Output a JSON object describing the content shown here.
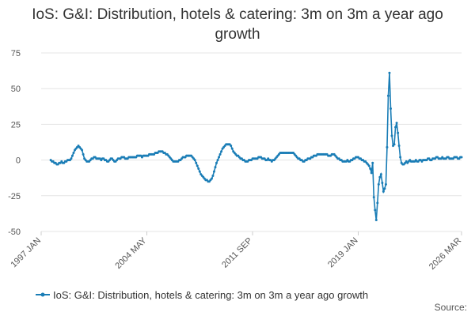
{
  "chart_data": {
    "type": "line",
    "title": "IoS: G&I: Distribution, hotels & catering: 3m on 3m a year ago growth",
    "source": "Source:",
    "x": [
      "1997 JAN",
      null,
      null,
      null,
      null,
      null,
      null,
      null,
      null,
      null,
      null,
      null,
      null,
      null,
      null,
      null,
      null,
      null,
      null,
      null,
      null,
      null,
      null,
      null,
      null,
      null,
      null,
      null,
      null,
      null,
      null,
      null,
      null,
      null,
      null,
      null,
      null,
      null,
      null,
      null,
      null,
      null,
      null,
      null,
      null,
      null,
      null,
      null,
      null,
      null,
      null,
      null,
      null,
      null,
      null,
      null,
      null,
      null,
      null,
      null,
      null,
      null,
      null,
      null,
      null,
      null,
      null,
      null,
      null,
      null,
      null,
      null,
      null,
      null,
      null,
      null,
      null,
      null,
      null,
      null,
      null,
      null,
      null,
      null,
      null,
      null,
      null,
      null,
      "2004 MAY",
      null,
      null,
      null,
      null,
      null,
      null,
      null,
      null,
      null,
      null,
      null,
      null,
      null,
      null,
      null,
      null,
      null,
      null,
      null,
      null,
      null,
      null,
      null,
      null,
      null,
      null,
      null,
      null,
      null,
      null,
      null,
      null,
      null,
      null,
      null,
      null,
      null,
      null,
      null,
      null,
      null,
      null,
      null,
      null,
      null,
      null,
      null,
      null,
      null,
      null,
      null,
      null,
      null,
      null,
      null,
      null,
      null,
      null,
      null,
      null,
      null,
      null,
      null,
      null,
      null,
      null,
      null,
      null,
      null,
      null,
      null,
      null,
      null,
      null,
      null,
      null,
      null,
      null,
      null,
      null,
      null,
      null,
      null,
      null,
      null,
      null,
      null,
      "2011 SEP",
      null,
      null,
      null,
      null,
      null,
      null,
      null,
      null,
      null,
      null,
      null,
      null,
      null,
      null,
      null,
      null,
      null,
      null,
      null,
      null,
      null,
      null,
      null,
      null,
      null,
      null,
      null,
      null,
      null,
      null,
      null,
      null,
      null,
      null,
      null,
      null,
      null,
      null,
      null,
      null,
      null,
      null,
      null,
      null,
      null,
      null,
      null,
      null,
      null,
      null,
      null,
      null,
      null,
      null,
      null,
      null,
      null,
      null,
      null,
      null,
      null,
      null,
      null,
      null,
      null,
      null,
      null,
      null,
      null,
      null,
      null,
      null,
      null,
      null,
      null,
      null,
      null,
      null,
      null,
      null,
      null,
      null,
      null,
      null,
      null,
      null,
      null,
      "2019 JAN",
      null,
      null,
      null,
      null,
      null,
      null,
      null,
      null,
      null,
      null,
      null,
      null,
      null,
      null,
      null,
      null,
      null,
      null,
      null,
      null,
      null,
      null,
      null,
      null,
      null,
      null,
      null,
      null,
      null,
      null,
      null,
      null,
      null,
      null,
      null,
      null,
      null,
      null,
      null,
      null,
      null,
      null,
      null,
      null,
      null,
      null,
      null,
      null,
      null,
      null,
      null,
      null,
      null,
      null,
      null,
      null,
      null,
      null,
      null,
      null,
      null,
      null,
      null,
      null,
      null,
      null,
      null,
      null,
      null,
      null,
      null,
      null,
      null,
      null,
      null,
      null,
      null,
      null,
      null,
      null,
      null,
      null,
      null,
      null,
      null,
      "2026 MAR"
    ],
    "series": [
      {
        "name": "IoS: G&I: Distribution, hotels & catering: 3m on 3m a year ago growth",
        "color": "#1a7db6",
        "values": [
          null,
          null,
          null,
          null,
          null,
          null,
          null,
          null,
          0,
          -1,
          -1,
          -2,
          -2,
          -3,
          -3,
          -2,
          -2,
          -1,
          -2,
          -2,
          -1,
          -1,
          0,
          0,
          0,
          1,
          3,
          5,
          7,
          8,
          9,
          10,
          9,
          8,
          7,
          4,
          1,
          0,
          -1,
          -1,
          -1,
          0,
          1,
          1,
          2,
          2,
          1,
          1,
          1,
          1,
          0,
          1,
          1,
          0,
          0,
          -1,
          -1,
          0,
          1,
          1,
          0,
          -1,
          -1,
          0,
          1,
          1,
          1,
          2,
          2,
          2,
          1,
          1,
          1,
          2,
          2,
          2,
          2,
          2,
          2,
          2,
          3,
          3,
          3,
          3,
          2,
          3,
          3,
          3,
          3,
          3,
          4,
          4,
          4,
          4,
          4,
          5,
          5,
          5,
          6,
          6,
          6,
          6,
          5,
          5,
          4,
          4,
          3,
          2,
          1,
          0,
          -1,
          -1,
          -1,
          -1,
          -1,
          0,
          0,
          1,
          2,
          2,
          2,
          3,
          3,
          3,
          3,
          3,
          2,
          1,
          0,
          -2,
          -4,
          -6,
          -8,
          -10,
          -11,
          -12,
          -13,
          -14,
          -14,
          -15,
          -15,
          -14,
          -13,
          -11,
          -8,
          -5,
          -2,
          0,
          2,
          4,
          6,
          8,
          9,
          10,
          11,
          11,
          11,
          11,
          10,
          8,
          6,
          5,
          4,
          3,
          3,
          2,
          1,
          1,
          0,
          0,
          -1,
          -1,
          -1,
          0,
          0,
          0,
          1,
          1,
          1,
          1,
          1,
          2,
          2,
          2,
          1,
          1,
          1,
          0,
          0,
          1,
          0,
          0,
          -1,
          0,
          0,
          1,
          2,
          3,
          4,
          5,
          5,
          5,
          5,
          5,
          5,
          5,
          5,
          5,
          5,
          5,
          5,
          4,
          3,
          2,
          1,
          1,
          0,
          0,
          -1,
          -1,
          0,
          0,
          1,
          1,
          1,
          2,
          2,
          3,
          3,
          3,
          4,
          4,
          4,
          4,
          4,
          4,
          4,
          4,
          4,
          3,
          3,
          3,
          4,
          4,
          4,
          3,
          2,
          1,
          1,
          0,
          0,
          -1,
          -1,
          -1,
          -1,
          0,
          -1,
          -1,
          0,
          0,
          1,
          1,
          2,
          2,
          2,
          1,
          1,
          0,
          0,
          -1,
          -1,
          -2,
          -3,
          -4,
          -6,
          -9,
          -2,
          -26,
          -35,
          -42,
          -30,
          -17,
          -12,
          -10,
          -16,
          -22,
          -20,
          -17,
          9,
          45,
          61,
          36,
          17,
          10,
          11,
          23,
          26,
          19,
          10,
          2,
          -2,
          -3,
          -3,
          -2,
          -1,
          -2,
          -1,
          0,
          -1,
          -1,
          -1,
          -1,
          0,
          -1,
          -1,
          0,
          0,
          -1,
          0,
          0,
          0,
          0,
          1,
          1,
          0,
          0,
          1,
          1,
          1,
          2,
          2,
          1,
          1,
          1,
          2,
          1,
          1,
          1,
          2,
          2,
          1,
          1,
          1,
          1,
          2,
          2,
          2,
          1,
          1,
          2,
          2
        ]
      }
    ],
    "ylim": [
      -50,
      75
    ],
    "yticks": [
      -50,
      -25,
      0,
      25,
      50,
      75
    ],
    "grid": true,
    "legend": "bottom"
  }
}
